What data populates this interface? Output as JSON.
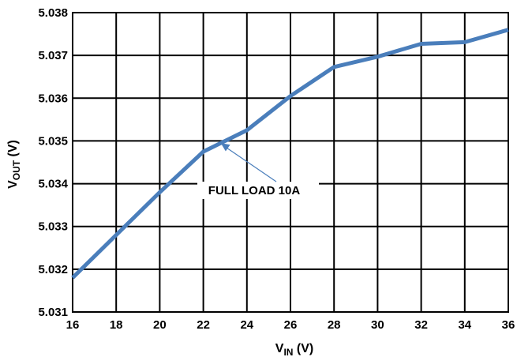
{
  "chart_data": {
    "type": "line",
    "x_axis": {
      "label_main": "V",
      "label_sub": "IN",
      "label_unit": " (V)",
      "range": [
        16,
        36
      ],
      "ticks": [
        "16",
        "18",
        "20",
        "22",
        "24",
        "26",
        "28",
        "30",
        "32",
        "34",
        "36"
      ]
    },
    "y_axis": {
      "label_main": "V",
      "label_sub": "OUT",
      "label_unit": " (V)",
      "range": [
        5.031,
        5.038
      ],
      "ticks": [
        "5.031",
        "5.032",
        "5.033",
        "5.034",
        "5.035",
        "5.036",
        "5.037",
        "5.038"
      ]
    },
    "grid": true,
    "series": [
      {
        "color": "#4a7ebb",
        "x": [
          16,
          18,
          20,
          22,
          24,
          26,
          28,
          30,
          32,
          34,
          36
        ],
        "y": [
          5.0318,
          5.0328,
          5.0338,
          5.03475,
          5.03525,
          5.03605,
          5.03673,
          5.03697,
          5.03727,
          5.03731,
          5.0376
        ]
      }
    ],
    "annotations": [
      {
        "text": "FULL LOAD 10A",
        "arrow_to": {
          "x": 22.8,
          "y": 5.03495
        },
        "arrow_color": "#4a7ebb"
      }
    ]
  }
}
